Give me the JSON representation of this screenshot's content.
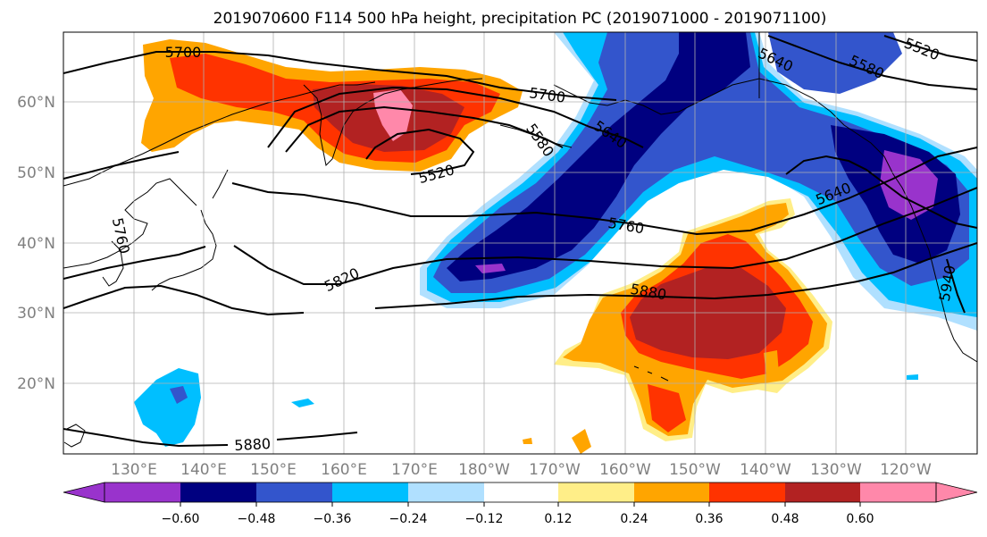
{
  "title": "2019070600 F114 500 hPa height, precipitation PC (2019071000 - 2019071100)",
  "axes": {
    "lat_ticks": [
      "60°N",
      "50°N",
      "40°N",
      "30°N",
      "20°N"
    ],
    "lon_ticks": [
      "130°E",
      "140°E",
      "150°E",
      "160°E",
      "170°E",
      "180°W",
      "170°W",
      "160°W",
      "150°W",
      "140°W",
      "130°W",
      "120°W"
    ],
    "grid": true
  },
  "contour_labels": [
    "5700",
    "5700",
    "5580",
    "5640",
    "5520",
    "5760",
    "5820",
    "5880",
    "5880",
    "5640",
    "5640",
    "5580",
    "5520",
    "5760",
    "5940"
  ],
  "colorbar": {
    "labels": [
      "−0.60",
      "−0.48",
      "−0.36",
      "−0.24",
      "−0.12",
      "0.12",
      "0.24",
      "0.36",
      "0.48",
      "0.60"
    ],
    "colors": [
      "#9933cc",
      "#000080",
      "#3355cc",
      "#00bfff",
      "#b0e0ff",
      "#ffffff",
      "#ffee88",
      "#ffa500",
      "#ff3300",
      "#b22222",
      "#ff88aa"
    ]
  }
}
